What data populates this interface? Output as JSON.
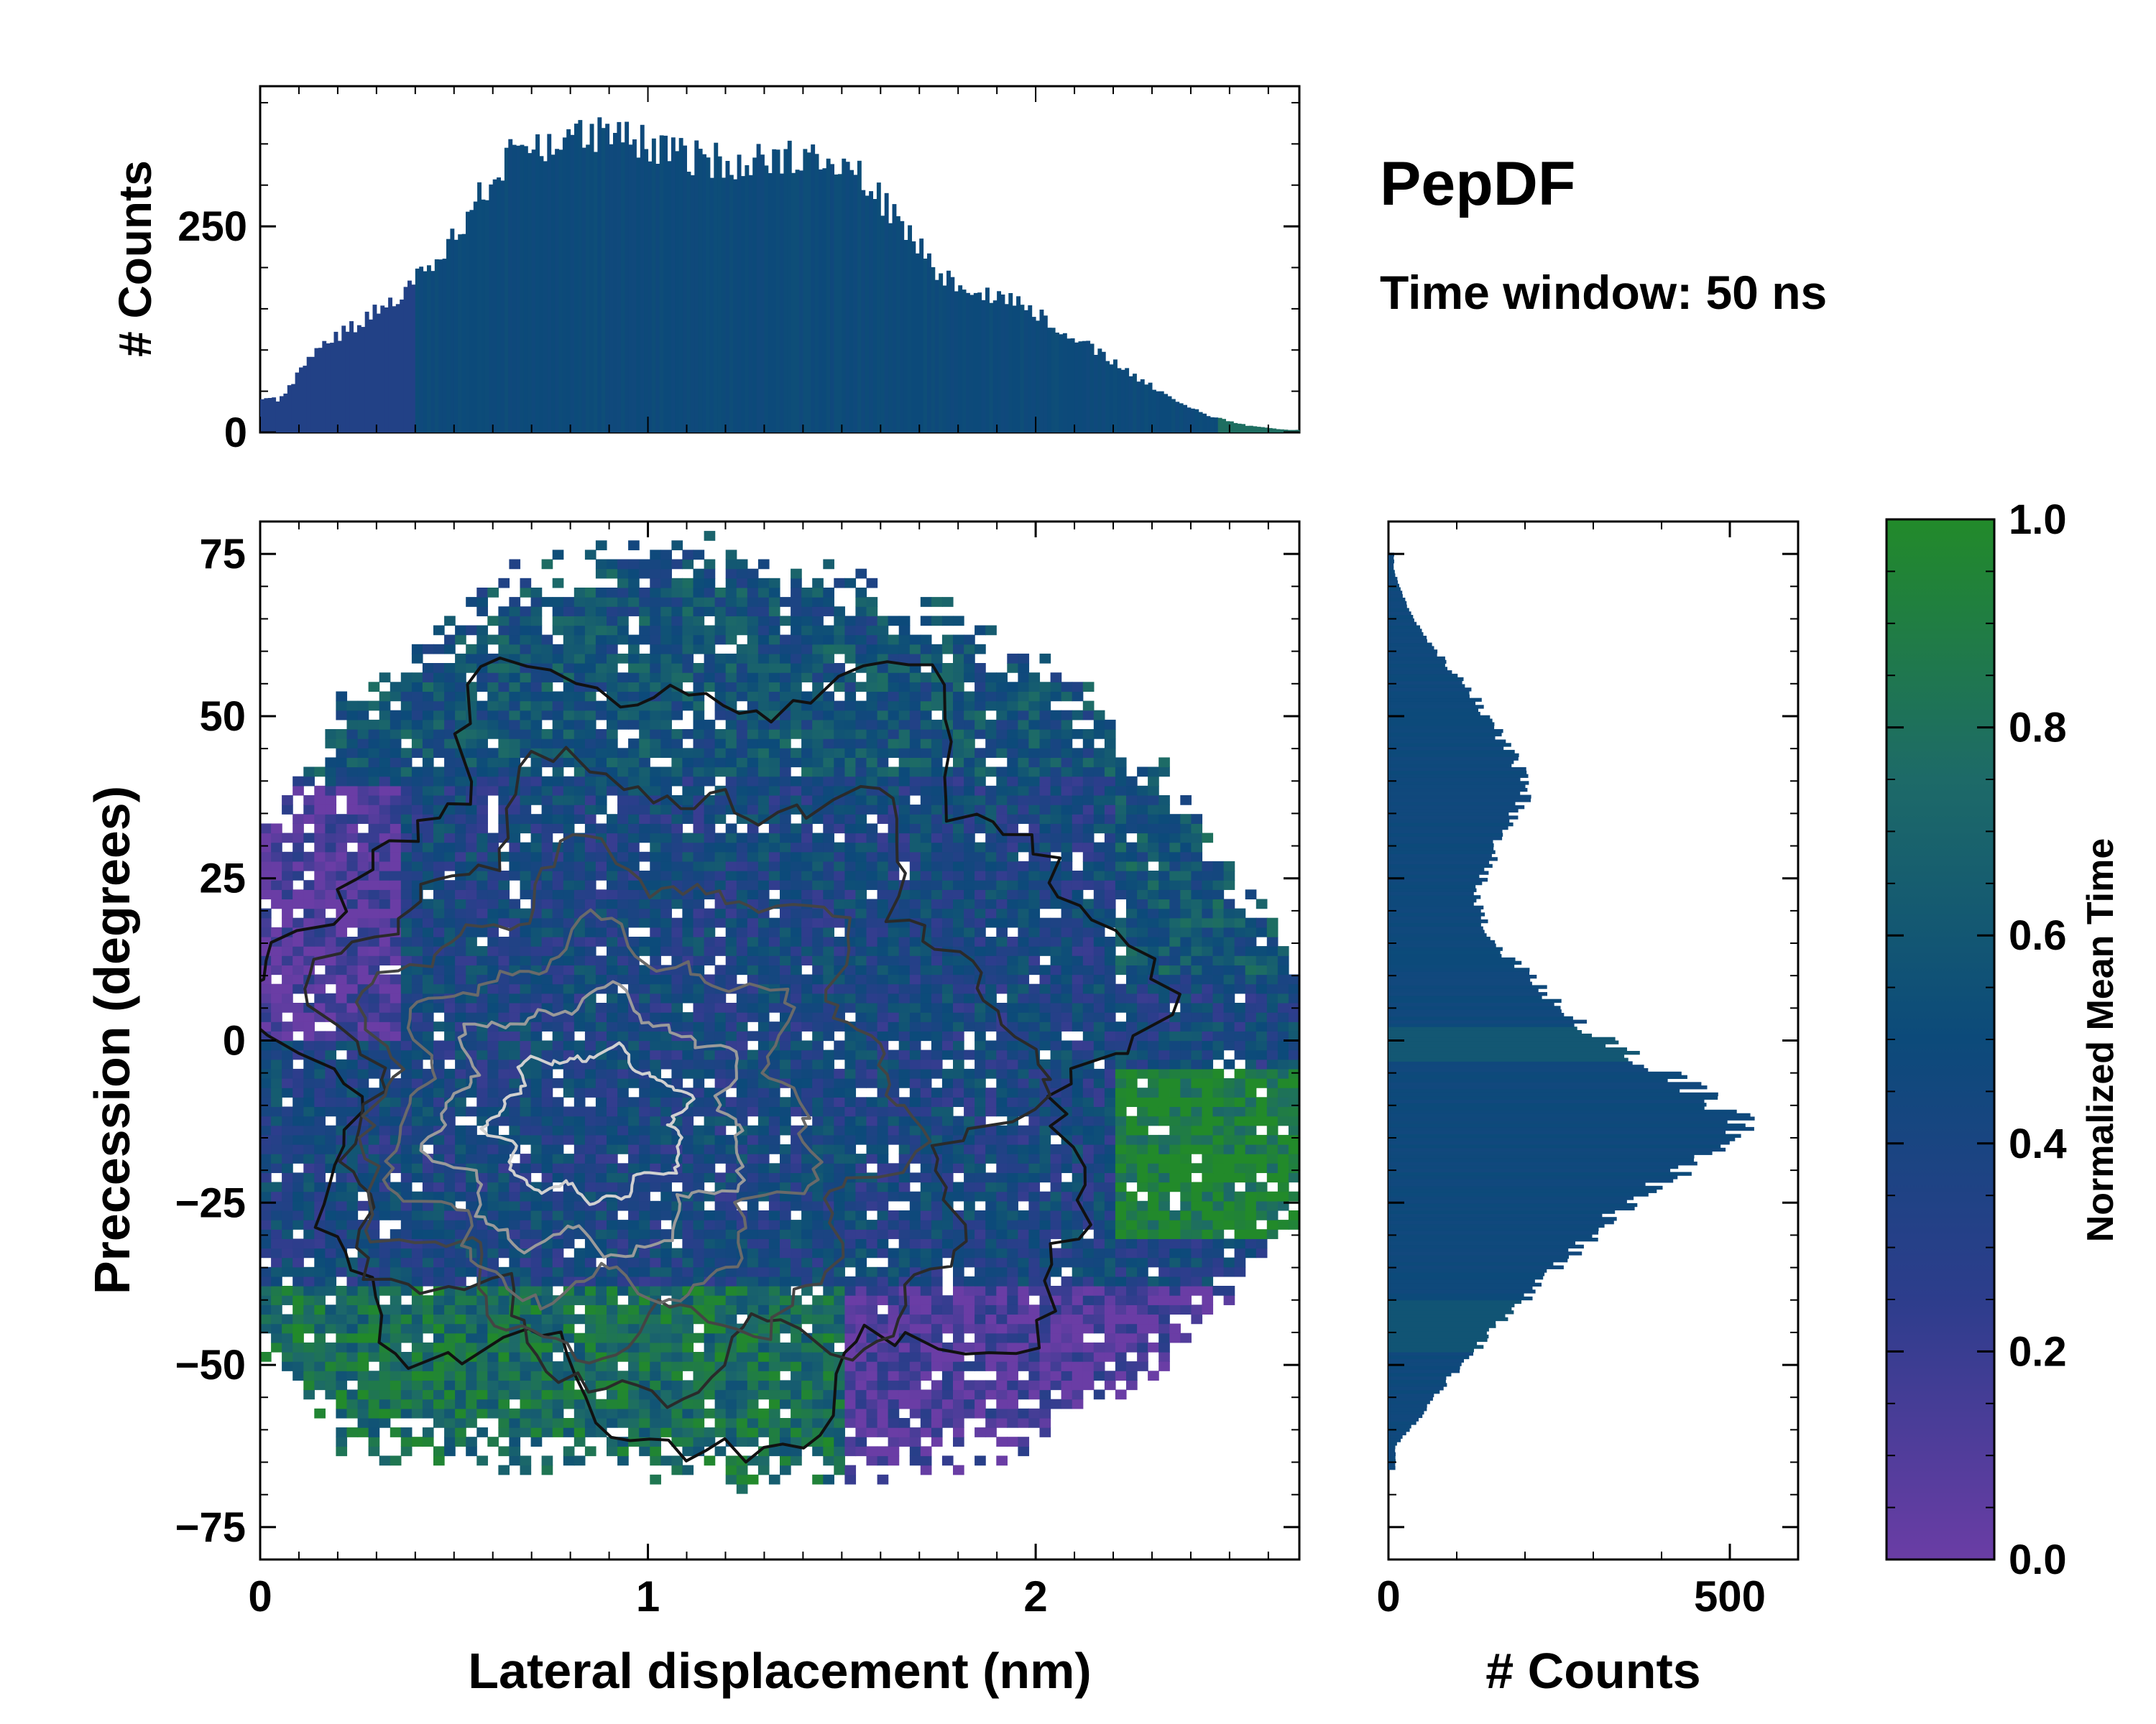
{
  "chart_data": [
    {
      "panel": "joint-2d",
      "type": "heatmap",
      "title": "PepDF",
      "subtitle": "Time window: 50 ns",
      "xlabel": "Lateral displacement (nm)",
      "ylabel": "Precession (degrees)",
      "xlim": [
        0,
        2.68
      ],
      "ylim": [
        -80,
        80
      ],
      "xticks": [
        0,
        1,
        2
      ],
      "yticks": [
        -75,
        -50,
        -25,
        0,
        25,
        50,
        75
      ],
      "grid": false,
      "contours": "density contours (black to white, increasing density)",
      "peak_density_region": {
        "x": [
          0.45,
          1.35
        ],
        "y": [
          -25,
          0
        ]
      }
    },
    {
      "panel": "marginal-x",
      "type": "bar",
      "ylabel": "# Counts",
      "yticks": [
        0,
        250
      ],
      "ylim": [
        0,
        420
      ],
      "x": [
        0.05,
        0.15,
        0.25,
        0.35,
        0.45,
        0.55,
        0.65,
        0.75,
        0.85,
        0.95,
        1.05,
        1.15,
        1.25,
        1.35,
        1.45,
        1.55,
        1.65,
        1.75,
        1.85,
        1.95,
        2.05,
        2.15,
        2.25,
        2.35,
        2.45,
        2.55,
        2.65
      ],
      "values": [
        40,
        105,
        130,
        165,
        205,
        275,
        340,
        355,
        360,
        355,
        340,
        330,
        330,
        335,
        340,
        310,
        255,
        195,
        170,
        160,
        130,
        100,
        70,
        40,
        20,
        8,
        3
      ]
    },
    {
      "panel": "marginal-y",
      "type": "bar",
      "orientation": "horizontal",
      "xlabel": "# Counts",
      "xticks": [
        0,
        500
      ],
      "xlim": [
        0,
        600
      ],
      "y": [
        -62.5,
        -57.5,
        -52.5,
        -47.5,
        -42.5,
        -37.5,
        -32.5,
        -27.5,
        -22.5,
        -17.5,
        -12.5,
        -7.5,
        -2.5,
        2.5,
        7.5,
        12.5,
        17.5,
        22.5,
        27.5,
        32.5,
        37.5,
        42.5,
        47.5,
        52.5,
        57.5,
        62.5,
        67.5,
        72.5
      ],
      "values": [
        10,
        50,
        85,
        130,
        175,
        220,
        275,
        320,
        390,
        470,
        520,
        450,
        360,
        280,
        230,
        180,
        140,
        130,
        150,
        170,
        200,
        190,
        160,
        130,
        90,
        50,
        25,
        8
      ]
    },
    {
      "panel": "colorbar",
      "type": "colorbar",
      "label": "Normalized Mean Time",
      "ticks": [
        "0.0",
        "0.2",
        "0.4",
        "0.6",
        "0.8",
        "1.0"
      ],
      "range": [
        0,
        1
      ],
      "colors": [
        "#6a3da5",
        "#2d3d8c",
        "#0c4a7a",
        "#1d6a68",
        "#228a2a"
      ]
    }
  ]
}
